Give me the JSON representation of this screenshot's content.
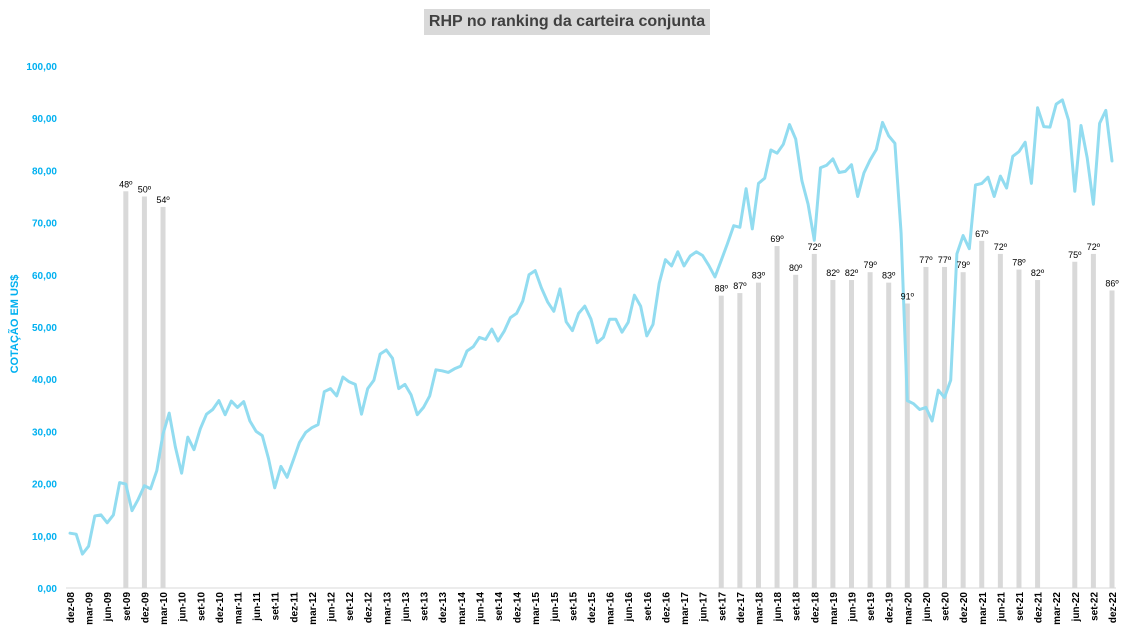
{
  "chart_data": {
    "type": "bar+line",
    "title": "RHP no ranking da carteira conjunta",
    "ylabel": "COTAÇÃO EM US$",
    "ylim": [
      0,
      100
    ],
    "yticks": [
      "0,00",
      "10,00",
      "20,00",
      "30,00",
      "40,00",
      "50,00",
      "60,00",
      "70,00",
      "80,00",
      "90,00",
      "100,00"
    ],
    "xticks": [
      "dez-08",
      "mar-09",
      "jun-09",
      "set-09",
      "dez-09",
      "mar-10",
      "jun-10",
      "set-10",
      "dez-10",
      "mar-11",
      "jun-11",
      "set-11",
      "dez-11",
      "mar-12",
      "jun-12",
      "set-12",
      "dez-12",
      "mar-13",
      "jun-13",
      "set-13",
      "dez-13",
      "mar-14",
      "jun-14",
      "set-14",
      "dez-14",
      "mar-15",
      "jun-15",
      "set-15",
      "dez-15",
      "mar-16",
      "jun-16",
      "set-16",
      "dez-16",
      "mar-17",
      "jun-17",
      "set-17",
      "dez-17",
      "mar-18",
      "jun-18",
      "set-18",
      "dez-18",
      "mar-19",
      "jun-19",
      "set-19",
      "dez-19",
      "mar-20",
      "jun-20",
      "set-20",
      "dez-20",
      "mar-21",
      "jun-21",
      "set-21",
      "dez-21",
      "mar-22",
      "jun-22",
      "set-22",
      "dez-22"
    ],
    "line_color": "#92dcf0",
    "bar_color": "#d9d9d9",
    "line_values": [
      10.5,
      10.3,
      6.5,
      8.0,
      13.8,
      14.0,
      12.5,
      14.0,
      20.2,
      19.9,
      14.8,
      17.0,
      19.6,
      19.0,
      22.5,
      29.5,
      33.5,
      27.0,
      22.0,
      28.9,
      26.5,
      30.5,
      33.3,
      34.2,
      35.9,
      33.2,
      35.8,
      34.6,
      35.7,
      32.0,
      30.0,
      29.2,
      24.8,
      19.2,
      23.3,
      21.2,
      24.5,
      27.9,
      29.8,
      30.7,
      31.3,
      37.6,
      38.2,
      36.8,
      40.4,
      39.5,
      39.0,
      33.3,
      38.2,
      39.8,
      44.8,
      45.6,
      44.0,
      38.2,
      39.0,
      37.0,
      33.2,
      34.6,
      36.8,
      41.8,
      41.6,
      41.3,
      42.0,
      42.5,
      45.4,
      46.2,
      48.0,
      47.6,
      49.6,
      47.3,
      49.2,
      51.8,
      52.6,
      55.0,
      60.0,
      60.8,
      57.5,
      54.8,
      53.0,
      57.3,
      51.0,
      49.3,
      52.6,
      54.0,
      51.5,
      47.0,
      48.0,
      51.5,
      51.5,
      49.0,
      50.9,
      56.1,
      54.0,
      48.3,
      50.5,
      58.4,
      62.9,
      61.7,
      64.4,
      61.7,
      63.6,
      64.4,
      63.7,
      61.8,
      59.6,
      62.8,
      66.0,
      69.4,
      69.1,
      76.5,
      68.8,
      77.5,
      78.5,
      83.9,
      83.3,
      85.0,
      88.8,
      86.0,
      78.0,
      73.5,
      66.6,
      80.5,
      81.0,
      82.2,
      79.6,
      79.8,
      81.1,
      75.0,
      79.5,
      82.0,
      84.0,
      89.2,
      86.6,
      85.2,
      68.0,
      35.9,
      35.3,
      34.2,
      34.6,
      32.0,
      37.9,
      36.5,
      39.8,
      64.0,
      67.5,
      65.0,
      77.2,
      77.5,
      78.7,
      75.0,
      78.9,
      76.6,
      82.7,
      83.6,
      85.4,
      77.5,
      92.0,
      88.4,
      88.3,
      92.7,
      93.5,
      89.6,
      76.0,
      88.6,
      82.4,
      73.5,
      89.0,
      91.5,
      81.8
    ],
    "bars": [
      {
        "tick": "set-09",
        "value": 76.0,
        "label": "48º"
      },
      {
        "tick": "dez-09",
        "value": 75.0,
        "label": "50º"
      },
      {
        "tick": "mar-10",
        "value": 73.0,
        "label": "54º"
      },
      {
        "tick": "set-17",
        "value": 56.0,
        "label": "88º"
      },
      {
        "tick": "dez-17",
        "value": 56.5,
        "label": "87º"
      },
      {
        "tick": "mar-18",
        "value": 58.5,
        "label": "83º"
      },
      {
        "tick": "jun-18",
        "value": 65.5,
        "label": "69º"
      },
      {
        "tick": "set-18",
        "value": 60.0,
        "label": "80º"
      },
      {
        "tick": "dez-18",
        "value": 64.0,
        "label": "72º"
      },
      {
        "tick": "mar-19",
        "value": 59.0,
        "label": "82º"
      },
      {
        "tick": "jun-19",
        "value": 59.0,
        "label": "82º"
      },
      {
        "tick": "set-19",
        "value": 60.5,
        "label": "79º"
      },
      {
        "tick": "dez-19",
        "value": 58.5,
        "label": "83º"
      },
      {
        "tick": "mar-20",
        "value": 54.5,
        "label": "91º"
      },
      {
        "tick": "jun-20",
        "value": 61.5,
        "label": "77º"
      },
      {
        "tick": "set-20",
        "value": 61.5,
        "label": "77º"
      },
      {
        "tick": "dez-20",
        "value": 60.5,
        "label": "79º"
      },
      {
        "tick": "mar-21",
        "value": 66.5,
        "label": "67º"
      },
      {
        "tick": "jun-21",
        "value": 64.0,
        "label": "72º"
      },
      {
        "tick": "set-21",
        "value": 61.0,
        "label": "78º"
      },
      {
        "tick": "dez-21",
        "value": 59.0,
        "label": "82º"
      },
      {
        "tick": "jun-22",
        "value": 62.5,
        "label": "75º"
      },
      {
        "tick": "set-22",
        "value": 64.0,
        "label": "72º"
      },
      {
        "tick": "dez-22",
        "value": 57.0,
        "label": "86º"
      }
    ]
  }
}
